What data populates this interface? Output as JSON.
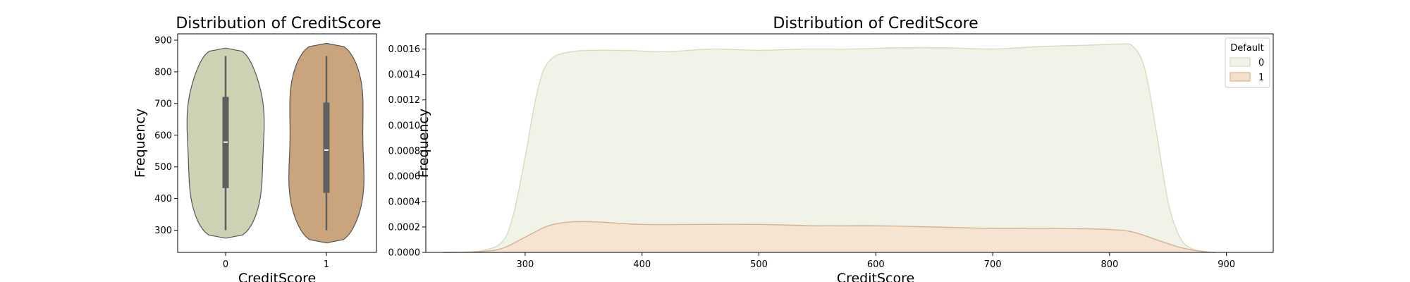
{
  "chart_data": [
    {
      "type": "violin",
      "title": "Distribution of CreditScore",
      "xlabel": "CreditScore",
      "ylabel": "Frequency",
      "categories": [
        "0",
        "1"
      ],
      "yticks": [
        300,
        400,
        500,
        600,
        700,
        800,
        900
      ],
      "ylim": [
        230,
        920
      ],
      "series": [
        {
          "category": "0",
          "color": "#cbd3b4",
          "min": 300,
          "q1": 433,
          "median": 578,
          "q3": 721,
          "max": 850,
          "extent": [
            275,
            875
          ]
        },
        {
          "category": "1",
          "color": "#c9a47d",
          "min": 300,
          "q1": 418,
          "median": 553,
          "q3": 703,
          "max": 850,
          "extent": [
            260,
            890
          ]
        }
      ]
    },
    {
      "type": "area",
      "title": "Distribution of CreditScore",
      "xlabel": "CreditScore",
      "ylabel": "Frequency",
      "xlim": [
        215,
        940
      ],
      "ylim": [
        0,
        0.00172
      ],
      "xticks": [
        300,
        400,
        500,
        600,
        700,
        800,
        900
      ],
      "yticks": [
        "0.0000",
        "0.0002",
        "0.0004",
        "0.0006",
        "0.0008",
        "0.0010",
        "0.0012",
        "0.0014",
        "0.0016"
      ],
      "legend": {
        "title": "Default",
        "position": "top-right"
      },
      "series": [
        {
          "name": "0",
          "fill": "#f1f3e8",
          "stroke": "#d7dcbd",
          "x": [
            230,
            260,
            280,
            290,
            300,
            310,
            320,
            340,
            380,
            420,
            460,
            500,
            540,
            580,
            620,
            660,
            700,
            740,
            780,
            810,
            820,
            830,
            840,
            850,
            860,
            870,
            880,
            890
          ],
          "y": [
            0,
            1e-05,
            8e-05,
            0.0003,
            0.00075,
            0.00125,
            0.0015,
            0.00158,
            0.00159,
            0.00158,
            0.0016,
            0.00159,
            0.0016,
            0.0016,
            0.00161,
            0.00161,
            0.0016,
            0.00162,
            0.00163,
            0.00164,
            0.00162,
            0.00145,
            0.00095,
            0.0004,
            0.00012,
            3e-05,
            1e-05,
            0
          ]
        },
        {
          "name": "1",
          "fill": "#f5dfca",
          "stroke": "#d5b290",
          "x": [
            230,
            260,
            280,
            300,
            320,
            340,
            360,
            400,
            450,
            500,
            550,
            600,
            650,
            700,
            750,
            800,
            820,
            840,
            860,
            880,
            890
          ],
          "y": [
            0,
            5e-06,
            3e-05,
            0.00012,
            0.00021,
            0.00024,
            0.00024,
            0.00022,
            0.00022,
            0.00022,
            0.00021,
            0.00021,
            0.0002,
            0.00019,
            0.00019,
            0.00018,
            0.00016,
            0.0001,
            4e-05,
            5e-06,
            0
          ]
        }
      ]
    }
  ]
}
